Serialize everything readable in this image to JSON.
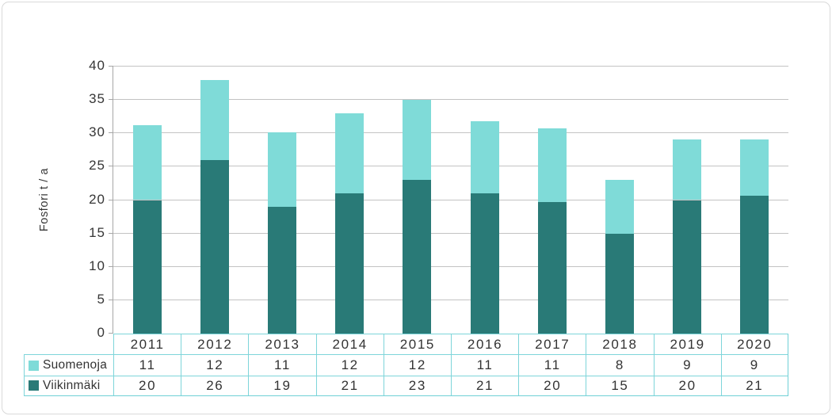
{
  "frame": {
    "background": "#ffffff",
    "border_color": "#d9d9d9"
  },
  "chart_data": {
    "type": "bar",
    "stacked": true,
    "title": "",
    "ylabel": "Fosfori t / a",
    "ylim": [
      0,
      40
    ],
    "ytick_step": 5,
    "yticks": [
      "0",
      "5",
      "10",
      "15",
      "20",
      "25",
      "30",
      "35",
      "40"
    ],
    "grid": "horizontal",
    "legend_position": "table-left",
    "categories": [
      "2011",
      "2012",
      "2013",
      "2014",
      "2015",
      "2016",
      "2017",
      "2018",
      "2019",
      "2020"
    ],
    "series": [
      {
        "name": "Suomenoja",
        "color": "#7fdbd8",
        "table_values": [
          "11",
          "12",
          "11",
          "12",
          "12",
          "11",
          "11",
          "8",
          "9",
          "9"
        ],
        "bar_values": [
          11.2,
          12,
          11.2,
          12,
          12,
          10.8,
          11.1,
          8,
          9.1,
          8.5
        ],
        "stack_level": "top"
      },
      {
        "name": "Viikinmäki",
        "color": "#297a77",
        "table_values": [
          "20",
          "26",
          "19",
          "21",
          "23",
          "21",
          "20",
          "15",
          "20",
          "21"
        ],
        "bar_values": [
          20,
          26,
          19,
          21,
          23,
          21,
          19.7,
          15,
          20,
          20.6
        ],
        "stack_level": "bottom"
      }
    ],
    "bar_totals": [
      31.2,
      38,
      30.2,
      33,
      35,
      31.8,
      30.8,
      23,
      29.1,
      29.1
    ]
  },
  "style_colors": {
    "gridline": "#c3c3c3",
    "axis_line": "#a6a6a6",
    "table_border": "#7ed5da",
    "text": "#363636"
  }
}
